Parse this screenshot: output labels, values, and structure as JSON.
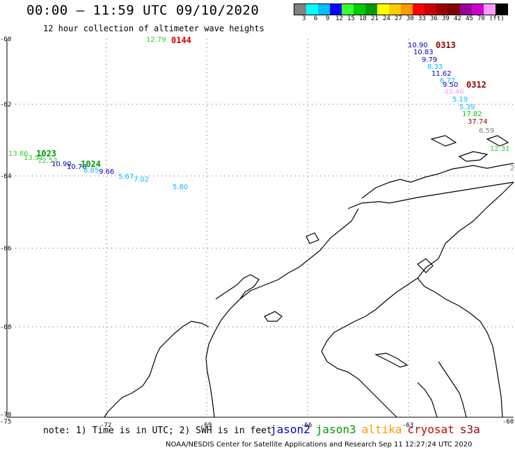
{
  "header": {
    "title": "00:00 – 11:59 UTC 09/10/2020",
    "subtitle": "12 hour collection of altimeter wave heights"
  },
  "color_scale": {
    "colors": [
      "#808080",
      "#00ffff",
      "#00bfff",
      "#0000ff",
      "#33ff33",
      "#00cc00",
      "#009900",
      "#ffff00",
      "#ffcc00",
      "#ff9900",
      "#ff0000",
      "#cc0000",
      "#990000",
      "#800000",
      "#990099",
      "#cc00cc",
      "#ff99ff",
      "#000000"
    ],
    "labels": [
      "3",
      "6",
      "9",
      "12",
      "15",
      "18",
      "21",
      "24",
      "27",
      "30",
      "33",
      "36",
      "39",
      "42",
      "45",
      "70",
      "(ft)"
    ]
  },
  "axes": {
    "y_labels": [
      "-60",
      "-62",
      "-64",
      "-66",
      "-68",
      "-70"
    ],
    "x_labels": [
      "-75",
      "-72",
      "-69",
      "-66",
      "-63",
      "-60"
    ]
  },
  "passes": [
    {
      "label": "0144",
      "color": "#cc0000"
    },
    {
      "label": "0313",
      "color": "#990000"
    },
    {
      "label": "0312",
      "color": "#990000"
    },
    {
      "label": "1023",
      "color": "#009900"
    },
    {
      "label": "1024",
      "color": "#009900"
    }
  ],
  "observations": [
    {
      "value": "12.79",
      "color": "#33cc33"
    },
    {
      "value": "10.90",
      "color": "#0000cc"
    },
    {
      "value": "10.83",
      "color": "#0000cc"
    },
    {
      "value": "9.79",
      "color": "#0000cc"
    },
    {
      "value": "8.33",
      "color": "#00bfff"
    },
    {
      "value": "11.62",
      "color": "#0000cc"
    },
    {
      "value": "6.77",
      "color": "#00bfff"
    },
    {
      "value": "9.50",
      "color": "#0000cc"
    },
    {
      "value": "43.46",
      "color": "#ff99ff"
    },
    {
      "value": "5.19",
      "color": "#00bfff"
    },
    {
      "value": "5.39",
      "color": "#00bfff"
    },
    {
      "value": "17.82",
      "color": "#00cc00"
    },
    {
      "value": "37.74",
      "color": "#990000"
    },
    {
      "value": "6.59",
      "color": "#808080"
    },
    {
      "value": "12.31",
      "color": "#33cc33"
    },
    {
      "value": "13.86",
      "color": "#33cc33"
    },
    {
      "value": "13.91",
      "color": "#33cc33"
    },
    {
      "value": "12.53",
      "color": "#33cc33"
    },
    {
      "value": "10.90",
      "color": "#0000cc"
    },
    {
      "value": "10.70",
      "color": "#0000cc"
    },
    {
      "value": "8.85",
      "color": "#00bfff"
    },
    {
      "value": "9.66",
      "color": "#0000cc"
    },
    {
      "value": "5.67",
      "color": "#00bfff"
    },
    {
      "value": "7.02",
      "color": "#00bfff"
    },
    {
      "value": "5.80",
      "color": "#00bfff"
    },
    {
      "value": "2",
      "color": "#808080"
    }
  ],
  "footer": {
    "note": "note: 1) Time is in UTC; 2) SWH is in feet",
    "credit": "NOAA/NESDIS Center for Satellite Applications and Research   Sep 11 12:27:24 UTC 2020",
    "satellites": [
      {
        "name": "jason2",
        "color": "#0000cc"
      },
      {
        "name": "jason3",
        "color": "#009900"
      },
      {
        "name": "altika",
        "color": "#ff9900"
      },
      {
        "name": "cryosat",
        "color": "#cc0000"
      },
      {
        "name": "s3a",
        "color": "#990000"
      }
    ]
  }
}
